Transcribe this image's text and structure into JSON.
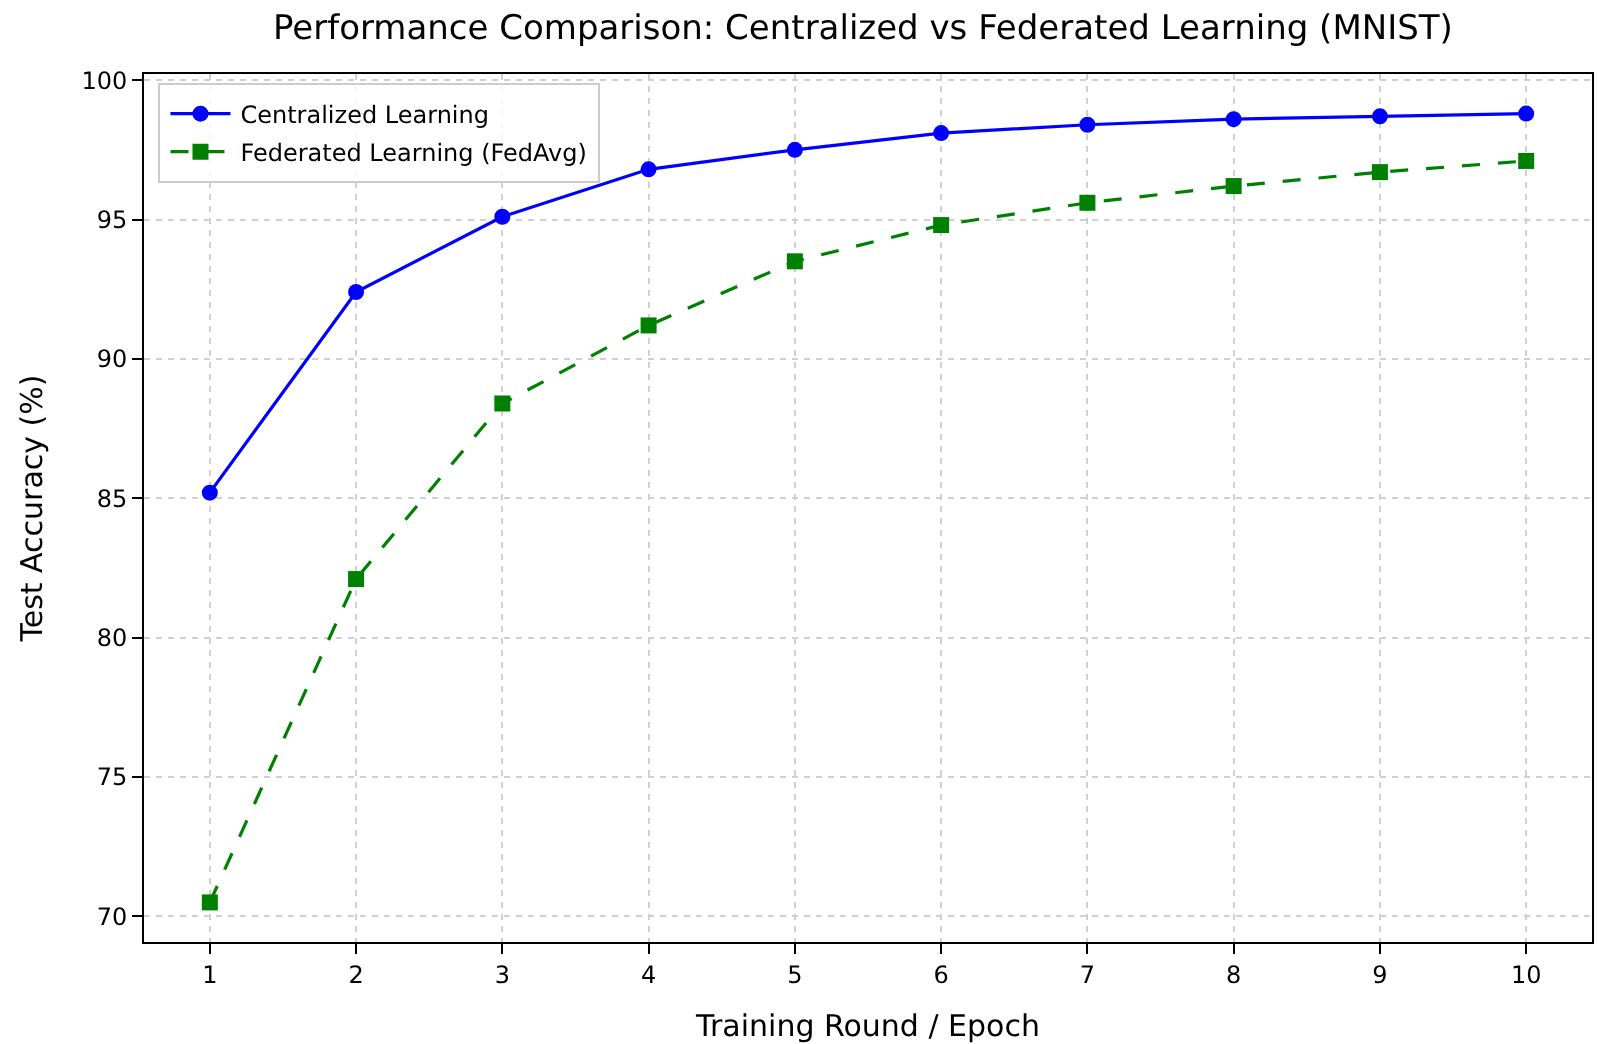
{
  "chart_data": {
    "type": "line",
    "title": "Performance Comparison: Centralized vs Federated Learning (MNIST)",
    "xlabel": "Training Round / Epoch",
    "ylabel": "Test Accuracy (%)",
    "x": [
      1,
      2,
      3,
      4,
      5,
      6,
      7,
      8,
      9,
      10
    ],
    "series": [
      {
        "name": "Centralized Learning",
        "color": "#0000ff",
        "marker": "circle",
        "line_style": "solid",
        "values": [
          85.2,
          92.4,
          95.1,
          96.8,
          97.5,
          98.1,
          98.4,
          98.6,
          98.7,
          98.8
        ]
      },
      {
        "name": "Federated Learning (FedAvg)",
        "color": "#008000",
        "marker": "square",
        "line_style": "dashed",
        "values": [
          70.5,
          82.1,
          88.4,
          91.2,
          93.5,
          94.8,
          95.6,
          96.2,
          96.7,
          97.1
        ]
      }
    ],
    "xlim": [
      0.55,
      10.45
    ],
    "xticks": [
      1,
      2,
      3,
      4,
      5,
      6,
      7,
      8,
      9,
      10
    ],
    "ylim": [
      69.08,
      100.22
    ],
    "yticks": [
      70,
      75,
      80,
      85,
      90,
      95,
      100
    ],
    "grid": true,
    "legend": "top left"
  }
}
